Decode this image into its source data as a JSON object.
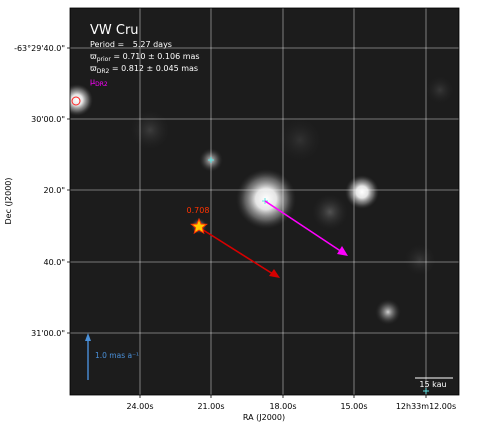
{
  "chart_data": {
    "type": "scatter",
    "title": "VW Cru",
    "info_lines": [
      {
        "prefix": "Period = ",
        "value": "5.27 days"
      },
      {
        "symbol": "ϖ",
        "sub": "prior",
        "text": " = 0.710 ± 0.106 mas"
      },
      {
        "symbol": "ϖ",
        "sub": "DR2",
        "text": " = 0.812 ± 0.045 mas"
      }
    ],
    "mu_label": {
      "symbol": "μ",
      "sub": "DR2"
    },
    "xlabel": "RA (J2000)",
    "ylabel": "Dec (J2000)",
    "x_ticks": [
      "24.00s",
      "21.00s",
      "18.00s",
      "15.00s",
      "12h33m12.00s"
    ],
    "y_ticks": [
      "-63°29'40.0\"",
      "30'00.0\"",
      "20.0\"",
      "40.0\"",
      "31'00.0\""
    ],
    "grid": true,
    "target_marker": {
      "label": "0.708",
      "ra": "20.9s",
      "dec": "30'25\""
    },
    "scale_arrow_label": "1.0 mas a⁻¹",
    "scalebar_label": "15 kau",
    "colors": {
      "background": "#1a1a1a",
      "grid": "#ffffff",
      "target_star": "#ff3300",
      "target_fill": "#ffcc00",
      "red_arrow": "#d60000",
      "magenta_arrow": "#ff00ff",
      "blue_arrow": "#4a90d9",
      "cross": "#5ee0e0",
      "mu_label": "#ff00ff"
    }
  }
}
